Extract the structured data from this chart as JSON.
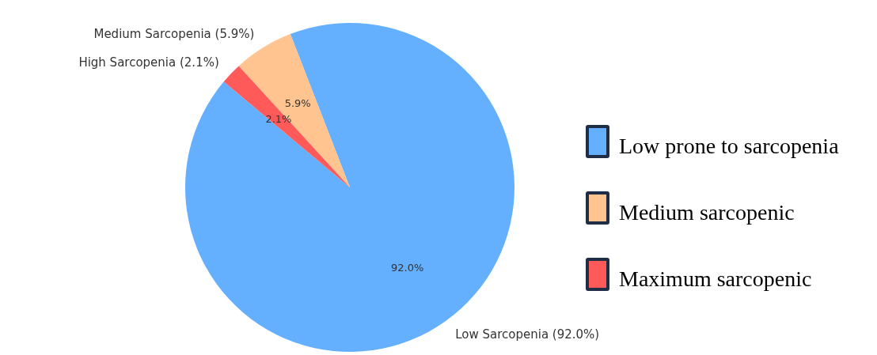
{
  "chart_data": {
    "type": "pie",
    "categories": [
      "Low Sarcopenia (92.0%)",
      "Medium Sarcopenia (5.9%)",
      "High Sarcopenia (2.1%)"
    ],
    "values": [
      92.0,
      5.9,
      2.1
    ],
    "colors": [
      "#64b0ff",
      "#ffc48f",
      "#ff5a5a"
    ],
    "value_labels": [
      "92.0%",
      "5.9%",
      "2.1%"
    ],
    "annotations": [
      "Low prone to sarcopenia",
      "Medium sarcopenic",
      "Maximum sarcopenic"
    ]
  }
}
